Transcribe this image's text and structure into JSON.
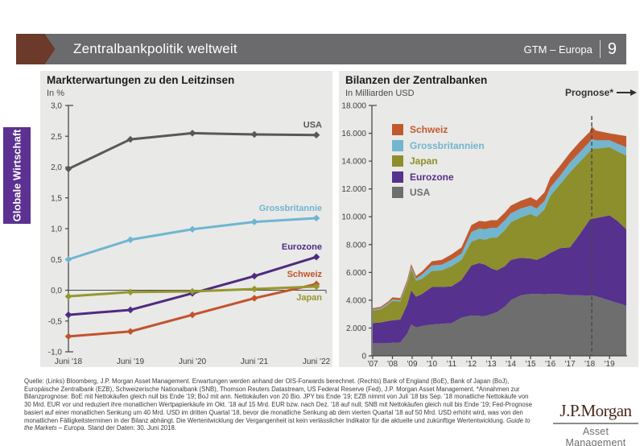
{
  "header": {
    "title": "Zentralbankpolitik weltweit",
    "edition": "GTM – Europa",
    "page_number": "9"
  },
  "sidebar": {
    "label": "Globale Wirtschaft",
    "color": "#5c3191"
  },
  "footer": {
    "text": "Quelle: (Links) Bloomberg, J.P. Morgan Asset Management. Erwartungen werden anhand der OIS-Forwards berechnet. (Rechts) Bank of England (BoE), Bank of Japan (BoJ), Europäische Zentralbank (EZB), Schweizerische Nationalbank (SNB), Thomson Reuters Datastream, US Federal Reserve (Fed), J.P. Morgan Asset Management. *Annahmen zur Bilanzprognose: BoE mit Nettokäufen gleich null bis Ende '19; BoJ mit ann. Nettokäufen von 20 Bio. JPY bis Ende '19; EZB nimmt von Juli '18 bis Sep. '18 monatliche Nettokäufe von 30 Mrd. EUR vor und reduziert ihre monatlichen Wertpapierkäufe im Okt. '18 auf 15 Mrd. EUR bzw. nach Dez. '18 auf null; SNB mit Nettokäufen gleich null bis Ende '19; Fed-Prognose basiert auf einer monatlichen Senkung um 40 Mrd. USD im dritten Quartal '18, bevor die monatliche Senkung ab dem vierten Quartal '18 auf 50 Mrd. USD erhöht wird, was von den monatlichen Fälligkeitsterminen in der Bilanz abhängt. Die Wertentwicklung der Vergangenheit ist kein verlässlicher Indikator für die aktuelle und zukünftige Wertentwicklung. ",
    "italic": "Guide to the Markets – Europa.",
    "suffix": " Stand der Daten: 30. Juni 2018."
  },
  "logo": {
    "brand": "J.P.Morgan",
    "division": "Asset Management"
  },
  "chart_data": [
    {
      "type": "line",
      "title": "Markterwartungen zu den Leitzinsen",
      "subtitle": "In %",
      "categories": [
        "Juni '18",
        "Juni '19",
        "Juni '20",
        "Juni '21",
        "Juni '22"
      ],
      "ylim": [
        -1.0,
        3.0
      ],
      "ytick_step": 0.5,
      "ytick_labels": [
        "3,0",
        "2,5",
        "2,0",
        "1,5",
        "1,0",
        "0,5",
        "0,0",
        "-0,5",
        "-1,0"
      ],
      "grid": false,
      "series": [
        {
          "name": "USA",
          "color": "#58585a",
          "values": [
            1.97,
            2.45,
            2.55,
            2.53,
            2.52
          ],
          "label_position": "above"
        },
        {
          "name": "Grossbritannie",
          "color": "#6fb5d2",
          "values": [
            0.5,
            0.82,
            0.99,
            1.11,
            1.17
          ],
          "label_position": "above"
        },
        {
          "name": "Eurozone",
          "color": "#4e2b81",
          "values": [
            -0.4,
            -0.32,
            -0.05,
            0.23,
            0.54
          ],
          "label_position": "above"
        },
        {
          "name": "Schweiz",
          "color": "#c0542c",
          "values": [
            -0.75,
            -0.67,
            -0.4,
            -0.13,
            0.1
          ],
          "label_position": "above"
        },
        {
          "name": "Japan",
          "color": "#96972f",
          "values": [
            -0.1,
            -0.03,
            -0.02,
            0.02,
            0.06
          ],
          "label_position": "below"
        }
      ]
    },
    {
      "type": "area",
      "title": "Bilanzen der Zentralbanken",
      "subtitle": "In Milliarden USD",
      "annotation": "Prognose*",
      "ylim": [
        0,
        18000
      ],
      "ytick_step": 2000,
      "ytick_labels": [
        "18.000",
        "16.000",
        "14.000",
        "12.000",
        "10.000",
        "8.000",
        "6.000",
        "4.000",
        "2.000",
        "0"
      ],
      "xlim": [
        2007,
        2019.85
      ],
      "xticks": [
        2007,
        2008,
        2009,
        2010,
        2011,
        2012,
        2013,
        2014,
        2015,
        2016,
        2017,
        2018,
        2019
      ],
      "xtick_labels": [
        "'07",
        "'08",
        "'09",
        "'10",
        "'11",
        "'12",
        "'13",
        "'14",
        "'15",
        "'16",
        "'17",
        "'18",
        "'19"
      ],
      "forecast_start_x": 2018.1,
      "x": [
        2007,
        2007.4,
        2007.8,
        2008,
        2008.4,
        2008.75,
        2008.95,
        2009.2,
        2009.5,
        2010,
        2010.5,
        2011,
        2011.5,
        2012,
        2012.4,
        2012.7,
        2013,
        2013.3,
        2013.7,
        2014,
        2014.5,
        2015,
        2015.3,
        2015.7,
        2016,
        2016.5,
        2017,
        2017.5,
        2018,
        2018.1,
        2018.3,
        2019,
        2019.4,
        2019.85
      ],
      "stack_order_note": "series listed bottom-up as stacked",
      "series": [
        {
          "name": "USA",
          "color": "#6e6e6e",
          "values": [
            900,
            900,
            910,
            950,
            960,
            1600,
            2250,
            2050,
            2150,
            2250,
            2300,
            2350,
            2750,
            2900,
            2870,
            2850,
            3000,
            3150,
            3550,
            4000,
            4350,
            4450,
            4450,
            4430,
            4450,
            4440,
            4350,
            4350,
            4330,
            4350,
            4300,
            3980,
            3800,
            3600
          ]
        },
        {
          "name": "Eurozone",
          "color": "#56318e",
          "values": [
            1450,
            1500,
            1600,
            1600,
            1650,
            2100,
            2450,
            2200,
            2300,
            2700,
            2650,
            2650,
            2700,
            3600,
            3800,
            3700,
            3300,
            3000,
            2900,
            2900,
            2700,
            2550,
            2450,
            2700,
            2950,
            3300,
            3450,
            4400,
            5470,
            5500,
            5600,
            6120,
            5900,
            5500
          ]
        },
        {
          "name": "Japan",
          "color": "#8d8e2c",
          "values": [
            900,
            950,
            1200,
            1400,
            1300,
            1450,
            1550,
            1150,
            1100,
            1150,
            1200,
            1450,
            1450,
            1700,
            1750,
            1800,
            2200,
            2350,
            2600,
            2700,
            2900,
            3200,
            3100,
            3400,
            4100,
            4600,
            5400,
            5200,
            4900,
            5050,
            5000,
            4900,
            5000,
            5300
          ]
        },
        {
          "name": "Grossbritannien",
          "color": "#72b5cf",
          "values": [
            80,
            85,
            95,
            100,
            100,
            120,
            150,
            150,
            300,
            400,
            400,
            450,
            450,
            700,
            730,
            750,
            700,
            700,
            700,
            650,
            640,
            600,
            590,
            600,
            600,
            620,
            700,
            700,
            700,
            700,
            600,
            500,
            550,
            600
          ]
        },
        {
          "name": "Schweiz",
          "color": "#c05a2e",
          "values": [
            90,
            90,
            120,
            150,
            140,
            180,
            200,
            200,
            220,
            300,
            350,
            400,
            450,
            500,
            550,
            550,
            550,
            550,
            560,
            550,
            560,
            600,
            580,
            620,
            700,
            720,
            700,
            750,
            700,
            900,
            700,
            500,
            650,
            800
          ]
        }
      ],
      "legend": [
        {
          "label": "Schweiz",
          "color": "#c05a2e"
        },
        {
          "label": "Grossbritannien",
          "color": "#72b5cf"
        },
        {
          "label": "Japan",
          "color": "#8d8e2c"
        },
        {
          "label": "Eurozone",
          "color": "#56318e"
        },
        {
          "label": "USA",
          "color": "#6e6e6e"
        }
      ]
    }
  ]
}
